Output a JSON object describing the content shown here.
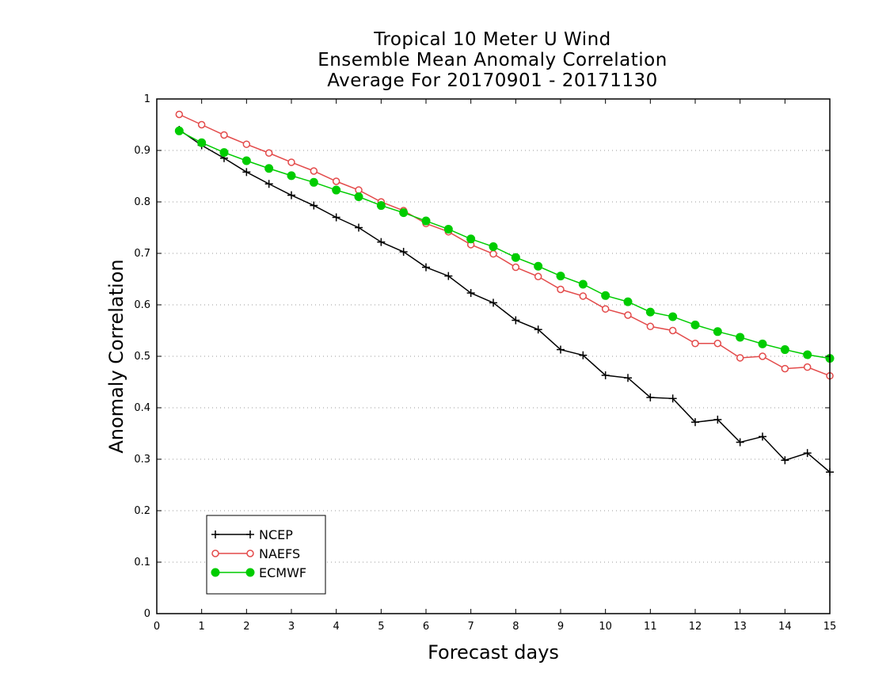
{
  "chart_data": {
    "type": "line",
    "title": [
      "Tropical 10 Meter U Wind",
      "Ensemble Mean Anomaly Correlation",
      "Average For 20170901 - 20171130"
    ],
    "xlabel": "Forecast days",
    "ylabel": "Anomaly Correlation",
    "xlim": [
      0,
      15
    ],
    "ylim": [
      0,
      1
    ],
    "x_ticks": [
      "0",
      "1",
      "2",
      "3",
      "4",
      "5",
      "6",
      "7",
      "8",
      "9",
      "10",
      "11",
      "12",
      "13",
      "14",
      "15"
    ],
    "y_ticks": [
      "0",
      "0.1",
      "0.2",
      "0.3",
      "0.4",
      "0.5",
      "0.6",
      "0.7",
      "0.8",
      "0.9",
      "1"
    ],
    "grid": true,
    "legend_position": "bottom-left",
    "x": [
      0.5,
      1,
      1.5,
      2,
      2.5,
      3,
      3.5,
      4,
      4.5,
      5,
      5.5,
      6,
      6.5,
      7,
      7.5,
      8,
      8.5,
      9,
      9.5,
      10,
      10.5,
      11,
      11.5,
      12,
      12.5,
      13,
      13.5,
      14,
      14.5,
      15
    ],
    "series": [
      {
        "name": "NCEP",
        "color": "#000000",
        "marker": "plus",
        "values": [
          0.94,
          0.91,
          0.885,
          0.858,
          0.835,
          0.813,
          0.793,
          0.77,
          0.75,
          0.722,
          0.703,
          0.673,
          0.656,
          0.623,
          0.604,
          0.57,
          0.552,
          0.513,
          0.502,
          0.463,
          0.458,
          0.42,
          0.418,
          0.372,
          0.377,
          0.333,
          0.344,
          0.298,
          0.312,
          0.275
        ]
      },
      {
        "name": "NAEFS",
        "color": "#e34a4a",
        "marker": "open-circle",
        "values": [
          0.97,
          0.95,
          0.93,
          0.912,
          0.895,
          0.877,
          0.86,
          0.84,
          0.823,
          0.8,
          0.783,
          0.758,
          0.742,
          0.717,
          0.699,
          0.673,
          0.655,
          0.63,
          0.617,
          0.592,
          0.58,
          0.558,
          0.55,
          0.525,
          0.525,
          0.497,
          0.5,
          0.476,
          0.479,
          0.462
        ]
      },
      {
        "name": "ECMWF",
        "color": "#00cc00",
        "marker": "filled-circle",
        "values": [
          0.938,
          0.915,
          0.896,
          0.88,
          0.865,
          0.851,
          0.838,
          0.823,
          0.81,
          0.793,
          0.779,
          0.763,
          0.747,
          0.728,
          0.713,
          0.692,
          0.675,
          0.656,
          0.64,
          0.618,
          0.606,
          0.586,
          0.577,
          0.561,
          0.548,
          0.537,
          0.524,
          0.513,
          0.503,
          0.496
        ]
      }
    ]
  }
}
